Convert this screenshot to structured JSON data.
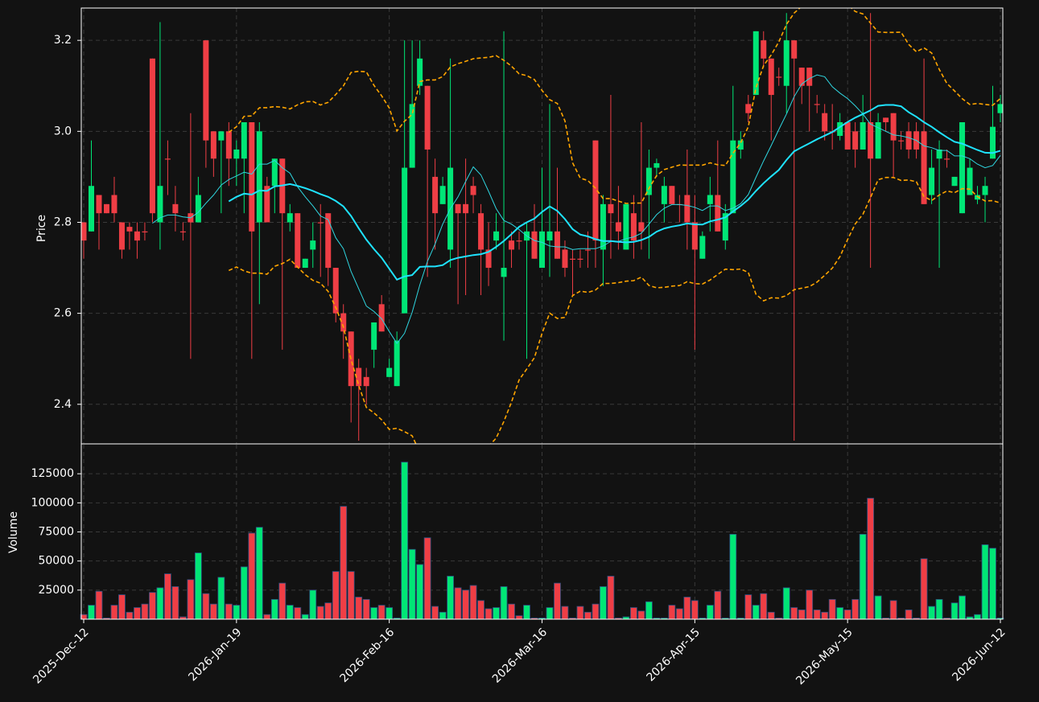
{
  "chart_data": {
    "type": "candlestick",
    "categories": [
      "2025-Dec-12",
      null,
      null,
      null,
      null,
      null,
      null,
      null,
      null,
      null,
      null,
      null,
      null,
      null,
      null,
      null,
      null,
      null,
      null,
      null,
      "2026-Jan-19",
      null,
      null,
      null,
      null,
      null,
      null,
      null,
      null,
      null,
      null,
      null,
      null,
      null,
      null,
      null,
      null,
      null,
      null,
      null,
      "2026-Feb-16",
      null,
      null,
      null,
      null,
      null,
      null,
      null,
      null,
      null,
      null,
      null,
      null,
      null,
      null,
      null,
      null,
      null,
      null,
      null,
      "2026-Mar-16",
      null,
      null,
      null,
      null,
      null,
      null,
      null,
      null,
      null,
      null,
      null,
      null,
      null,
      null,
      null,
      null,
      null,
      null,
      null,
      "2026-Apr-15",
      null,
      null,
      null,
      null,
      null,
      null,
      null,
      null,
      null,
      null,
      null,
      null,
      null,
      null,
      null,
      null,
      null,
      null,
      null,
      "2026-May-15",
      null,
      null,
      null,
      null,
      null,
      null,
      null,
      null,
      null,
      null,
      null,
      null,
      null,
      null,
      null,
      null,
      null,
      null,
      null,
      "2026-Jun-12"
    ],
    "open": [
      2.8,
      2.78,
      2.86,
      2.84,
      2.86,
      2.8,
      2.79,
      2.78,
      2.78,
      3.16,
      2.8,
      2.94,
      2.84,
      2.78,
      2.82,
      2.8,
      3.2,
      3.0,
      2.98,
      3.0,
      2.94,
      2.94,
      3.02,
      2.8,
      2.88,
      2.88,
      2.94,
      2.8,
      2.82,
      2.7,
      2.74,
      2.8,
      2.82,
      2.7,
      2.6,
      2.56,
      2.48,
      2.46,
      2.52,
      2.62,
      2.46,
      2.44,
      2.6,
      2.92,
      3.1,
      3.1,
      2.9,
      2.84,
      2.74,
      2.84,
      2.84,
      2.88,
      2.82,
      2.74,
      2.76,
      2.68,
      2.76,
      2.76,
      2.76,
      2.78,
      2.7,
      2.76,
      2.78,
      2.74,
      2.72,
      2.72,
      2.74,
      2.98,
      2.74,
      2.84,
      2.8,
      2.74,
      2.82,
      2.8,
      2.86,
      2.92,
      2.84,
      2.88,
      2.84,
      2.86,
      2.8,
      2.72,
      2.84,
      2.86,
      2.76,
      2.82,
      2.96,
      3.06,
      3.08,
      3.2,
      3.16,
      3.12,
      3.1,
      3.2,
      3.14,
      3.14,
      3.06,
      3.04,
      3.0,
      2.99,
      3.02,
      3.0,
      2.96,
      3.02,
      2.94,
      3.03,
      3.04,
      2.98,
      3.0,
      3.0,
      3.0,
      2.86,
      2.94,
      2.94,
      2.88,
      2.82,
      2.86,
      2.85,
      2.86,
      2.94,
      3.04
    ],
    "high": [
      2.8,
      2.98,
      2.86,
      2.84,
      2.9,
      2.8,
      2.8,
      2.8,
      2.8,
      3.16,
      3.24,
      2.98,
      2.88,
      2.8,
      3.04,
      2.9,
      3.2,
      3.0,
      3.0,
      3.02,
      2.98,
      3.02,
      3.02,
      3.02,
      2.9,
      2.94,
      2.94,
      2.84,
      2.82,
      2.72,
      2.8,
      2.84,
      2.82,
      2.7,
      2.62,
      2.56,
      2.5,
      2.48,
      2.58,
      2.64,
      2.5,
      2.56,
      3.2,
      3.2,
      3.2,
      3.1,
      2.94,
      2.9,
      3.16,
      2.84,
      2.94,
      2.9,
      2.84,
      2.8,
      2.82,
      3.22,
      2.78,
      2.78,
      2.8,
      2.84,
      2.92,
      3.06,
      2.92,
      2.76,
      2.74,
      2.74,
      2.78,
      2.98,
      2.86,
      3.08,
      2.88,
      2.84,
      2.86,
      3.02,
      2.96,
      2.94,
      2.9,
      2.88,
      2.86,
      2.96,
      2.86,
      2.78,
      2.9,
      2.98,
      2.84,
      3.1,
      3.0,
      3.08,
      3.22,
      3.22,
      3.16,
      3.14,
      3.26,
      3.2,
      3.14,
      3.14,
      3.08,
      3.06,
      3.06,
      3.04,
      3.02,
      3.02,
      3.08,
      3.26,
      3.04,
      3.03,
      3.04,
      3.0,
      3.02,
      3.02,
      3.16,
      2.96,
      2.98,
      2.96,
      2.9,
      3.02,
      2.94,
      2.88,
      2.9,
      3.1,
      3.08
    ],
    "low": [
      2.72,
      2.78,
      2.74,
      2.82,
      2.8,
      2.72,
      2.74,
      2.72,
      2.76,
      2.8,
      2.74,
      2.86,
      2.78,
      2.76,
      2.5,
      2.8,
      2.92,
      2.9,
      2.82,
      2.88,
      2.88,
      2.82,
      2.5,
      2.62,
      2.8,
      2.82,
      2.52,
      2.78,
      2.7,
      2.7,
      2.7,
      2.68,
      2.66,
      2.58,
      2.5,
      2.36,
      2.32,
      2.4,
      2.48,
      2.56,
      2.46,
      2.44,
      2.6,
      2.92,
      3.08,
      2.68,
      2.74,
      2.84,
      2.7,
      2.62,
      2.64,
      2.82,
      2.64,
      2.66,
      2.74,
      2.54,
      2.7,
      2.74,
      2.5,
      2.72,
      2.7,
      2.68,
      2.72,
      2.68,
      2.64,
      2.7,
      2.7,
      2.7,
      2.66,
      2.72,
      2.74,
      2.74,
      2.72,
      2.74,
      2.72,
      2.9,
      2.8,
      2.84,
      2.8,
      2.74,
      2.52,
      2.72,
      2.78,
      2.78,
      2.74,
      2.82,
      2.94,
      3.02,
      3.08,
      3.14,
      2.98,
      3.1,
      3.04,
      2.32,
      3.06,
      3.0,
      3.04,
      2.98,
      2.96,
      2.98,
      2.96,
      2.92,
      2.96,
      2.7,
      2.94,
      3.0,
      2.9,
      2.96,
      2.94,
      2.94,
      2.84,
      2.84,
      2.7,
      2.92,
      2.88,
      2.82,
      2.86,
      2.84,
      2.8,
      2.94,
      3.02
    ],
    "close": [
      2.76,
      2.88,
      2.82,
      2.82,
      2.82,
      2.74,
      2.78,
      2.76,
      2.78,
      2.82,
      2.88,
      2.94,
      2.82,
      2.78,
      2.8,
      2.86,
      2.98,
      2.94,
      3.0,
      2.94,
      2.96,
      3.02,
      2.78,
      3.0,
      2.8,
      2.94,
      2.82,
      2.82,
      2.7,
      2.72,
      2.76,
      2.8,
      2.7,
      2.6,
      2.56,
      2.44,
      2.44,
      2.44,
      2.58,
      2.56,
      2.48,
      2.54,
      2.92,
      3.06,
      3.16,
      2.96,
      2.82,
      2.88,
      2.92,
      2.82,
      2.82,
      2.86,
      2.74,
      2.7,
      2.78,
      2.7,
      2.74,
      2.76,
      2.78,
      2.72,
      2.78,
      2.78,
      2.72,
      2.7,
      2.72,
      2.72,
      2.74,
      2.76,
      2.84,
      2.82,
      2.78,
      2.84,
      2.76,
      2.78,
      2.92,
      2.93,
      2.88,
      2.84,
      2.84,
      2.8,
      2.74,
      2.77,
      2.86,
      2.78,
      2.82,
      2.98,
      2.98,
      3.04,
      3.22,
      3.16,
      3.08,
      3.12,
      3.2,
      3.16,
      3.1,
      3.1,
      3.06,
      3.0,
      3.0,
      3.02,
      2.96,
      2.96,
      3.02,
      2.94,
      3.02,
      3.02,
      2.98,
      2.98,
      2.96,
      2.96,
      2.84,
      2.92,
      2.96,
      2.94,
      2.9,
      3.02,
      2.92,
      2.86,
      2.88,
      3.01,
      3.06
    ],
    "volume": [
      4000,
      12000,
      24000,
      1000,
      12000,
      21000,
      6000,
      10000,
      13000,
      23000,
      27000,
      39000,
      28000,
      2000,
      34000,
      57000,
      22000,
      13000,
      36000,
      13000,
      12000,
      45000,
      74000,
      79000,
      4000,
      17000,
      31000,
      12000,
      10000,
      4000,
      25000,
      11000,
      14000,
      41000,
      97000,
      41000,
      19000,
      17000,
      10000,
      12000,
      10000,
      1000,
      135000,
      60000,
      47000,
      70000,
      11000,
      6000,
      37000,
      27000,
      25000,
      29000,
      16000,
      9000,
      10000,
      28000,
      13000,
      3000,
      12000,
      1000,
      1000,
      10000,
      31000,
      11000,
      1000,
      11000,
      6000,
      13000,
      28000,
      37000,
      1000,
      2000,
      10000,
      7000,
      15000,
      1000,
      1000,
      12000,
      9000,
      19000,
      16000,
      1000,
      12000,
      24000,
      1000,
      73000,
      1000,
      21000,
      12000,
      22000,
      6000,
      1000,
      27000,
      10000,
      8000,
      25000,
      8000,
      6000,
      17000,
      10000,
      8000,
      17000,
      73000,
      104000,
      20000,
      1000,
      16000,
      1000,
      8000,
      1000,
      52000,
      11000,
      17000,
      1000,
      14000,
      20000,
      2000,
      4000,
      64000,
      61000,
      1000
    ],
    "up_color": "#00e676",
    "down_color": "#ef3e45",
    "ylabel": "Price",
    "ylim": [
      2.313,
      3.271
    ],
    "yticks": [
      2.4,
      2.6,
      2.8,
      {
        "value": 3.0,
        "label": "3.0"
      },
      3.2
    ],
    "volume_label": "Volume",
    "volume_ylim": [
      0,
      150000
    ],
    "volume_yticks": [
      25000,
      50000,
      75000,
      100000,
      125000
    ],
    "mav": [
      10,
      20
    ],
    "mav_colors": [
      "#2fd6e0",
      "#1fe3ff"
    ],
    "bollinger": {
      "window": 20,
      "std": 2,
      "color": "#ffa500"
    },
    "grid": true
  }
}
